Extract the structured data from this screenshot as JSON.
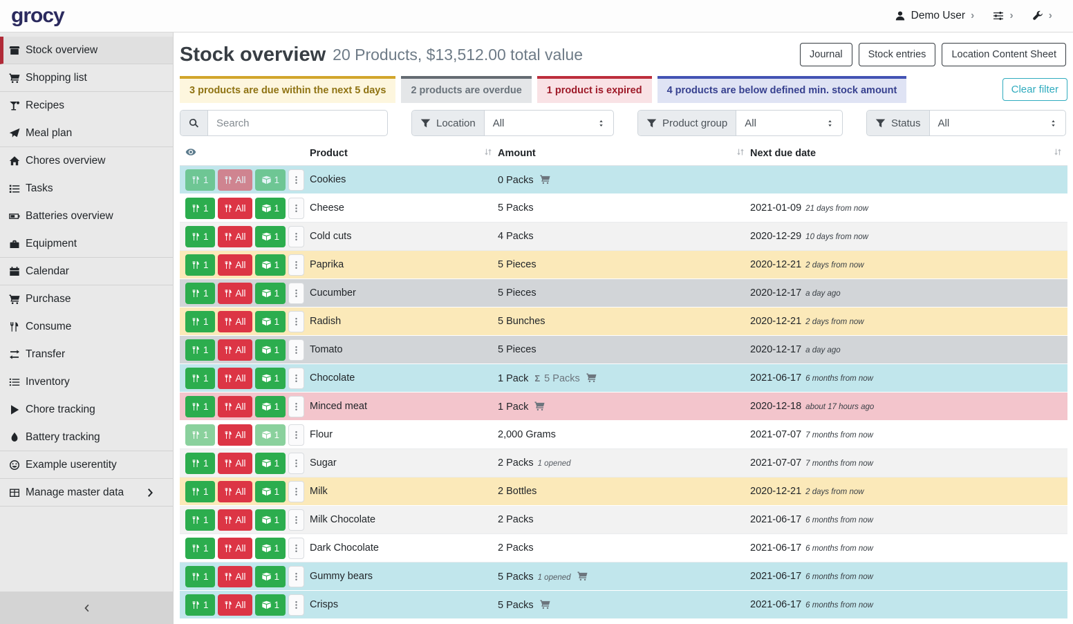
{
  "navbar": {
    "logo": "grocy",
    "user_label": "Demo User"
  },
  "sidebar": {
    "items": [
      {
        "label": "Stock overview",
        "icon": "box",
        "active": true,
        "divider": true
      },
      {
        "label": "Shopping list",
        "icon": "cart",
        "divider": true
      },
      {
        "label": "Recipes",
        "icon": "cocktail"
      },
      {
        "label": "Meal plan",
        "icon": "paper-plane",
        "divider": true
      },
      {
        "label": "Chores overview",
        "icon": "home"
      },
      {
        "label": "Tasks",
        "icon": "tasks"
      },
      {
        "label": "Batteries overview",
        "icon": "battery"
      },
      {
        "label": "Equipment",
        "icon": "toolbox",
        "divider": true
      },
      {
        "label": "Calendar",
        "icon": "calendar",
        "divider": true
      },
      {
        "label": "Purchase",
        "icon": "cart"
      },
      {
        "label": "Consume",
        "icon": "utensils"
      },
      {
        "label": "Transfer",
        "icon": "transfer"
      },
      {
        "label": "Inventory",
        "icon": "list"
      },
      {
        "label": "Chore tracking",
        "icon": "play"
      },
      {
        "label": "Battery tracking",
        "icon": "droplet",
        "divider": true
      },
      {
        "label": "Example userentity",
        "icon": "smiley",
        "divider": true
      },
      {
        "label": "Manage master data",
        "icon": "table",
        "chevron": true,
        "divider": true
      }
    ]
  },
  "header": {
    "title": "Stock overview",
    "subtitle": "20 Products, $13,512.00 total value",
    "buttons": [
      "Journal",
      "Stock entries",
      "Location Content Sheet"
    ]
  },
  "status_bars": [
    {
      "type": "due",
      "label": "3 products are due within the next 5 days",
      "color": "#d2a52b"
    },
    {
      "type": "overdue",
      "label": "2 products are overdue",
      "color": "#646b72"
    },
    {
      "type": "expired",
      "label": "1 product is expired",
      "color": "#bd2d3c"
    },
    {
      "type": "below-min",
      "label": "4 products are below defined min. stock amount",
      "color": "#4353b4"
    }
  ],
  "clear_filter_label": "Clear filter",
  "filters": {
    "search_placeholder": "Search",
    "location": {
      "label": "Location",
      "value": "All"
    },
    "product_group": {
      "label": "Product group",
      "value": "All"
    },
    "status": {
      "label": "Status",
      "value": "All"
    }
  },
  "colors": {
    "consume_green": "#2cad4e",
    "consume_red": "#dc3545",
    "row_below_min": "#c1e6ec",
    "row_due_soon": "#fbe9b9",
    "row_overdue": "#d2d5d8",
    "row_expired": "#f3c5cc",
    "active_nav_red": "#b02a37",
    "clear_filter_teal": "#2fabbe",
    "logo_navy": "#2b2a5e"
  },
  "table": {
    "columns": [
      "Product",
      "Amount",
      "Next due date"
    ],
    "row_actions": {
      "consume_one": "1",
      "consume_all": "All",
      "open_one": "1"
    },
    "rows": [
      {
        "product": "Cookies",
        "amount": "0 Packs",
        "cart": true,
        "date": "",
        "rel": "",
        "status": "below-min",
        "disabled": [
          "consume_one",
          "consume_all",
          "open_one"
        ]
      },
      {
        "product": "Cheese",
        "amount": "5 Packs",
        "cart": false,
        "date": "2021-01-09",
        "rel": "21 days from now",
        "status": "none",
        "striped": false
      },
      {
        "product": "Cold cuts",
        "amount": "4 Packs",
        "cart": false,
        "date": "2020-12-29",
        "rel": "10 days from now",
        "status": "none",
        "striped": true
      },
      {
        "product": "Paprika",
        "amount": "5 Pieces",
        "cart": false,
        "date": "2020-12-21",
        "rel": "2 days from now",
        "status": "due-soon"
      },
      {
        "product": "Cucumber",
        "amount": "5 Pieces",
        "cart": false,
        "date": "2020-12-17",
        "rel": "a day ago",
        "status": "overdue"
      },
      {
        "product": "Radish",
        "amount": "5 Bunches",
        "cart": false,
        "date": "2020-12-21",
        "rel": "2 days from now",
        "status": "due-soon"
      },
      {
        "product": "Tomato",
        "amount": "5 Pieces",
        "cart": false,
        "date": "2020-12-17",
        "rel": "a day ago",
        "status": "overdue"
      },
      {
        "product": "Chocolate",
        "amount": "1 Pack",
        "sum": "5 Packs",
        "cart": true,
        "date": "2021-06-17",
        "rel": "6 months from now",
        "status": "below-min"
      },
      {
        "product": "Minced meat",
        "amount": "1 Pack",
        "cart": true,
        "date": "2020-12-18",
        "rel": "about 17 hours ago",
        "status": "expired"
      },
      {
        "product": "Flour",
        "amount": "2,000 Grams",
        "cart": false,
        "date": "2021-07-07",
        "rel": "7 months from now",
        "status": "none",
        "striped": false,
        "disabled": [
          "consume_one",
          "open_one"
        ]
      },
      {
        "product": "Sugar",
        "amount": "2 Packs",
        "opened": "1 opened",
        "cart": false,
        "date": "2021-07-07",
        "rel": "7 months from now",
        "status": "none",
        "striped": true
      },
      {
        "product": "Milk",
        "amount": "2 Bottles",
        "cart": false,
        "date": "2020-12-21",
        "rel": "2 days from now",
        "status": "due-soon"
      },
      {
        "product": "Milk Chocolate",
        "amount": "2 Packs",
        "cart": false,
        "date": "2021-06-17",
        "rel": "6 months from now",
        "status": "none",
        "striped": true
      },
      {
        "product": "Dark Chocolate",
        "amount": "2 Packs",
        "cart": false,
        "date": "2021-06-17",
        "rel": "6 months from now",
        "status": "none",
        "striped": false
      },
      {
        "product": "Gummy bears",
        "amount": "5 Packs",
        "opened": "1 opened",
        "cart": true,
        "date": "2021-06-17",
        "rel": "6 months from now",
        "status": "below-min"
      },
      {
        "product": "Crisps",
        "amount": "5 Packs",
        "cart": true,
        "date": "2021-06-17",
        "rel": "6 months from now",
        "status": "below-min"
      }
    ]
  }
}
